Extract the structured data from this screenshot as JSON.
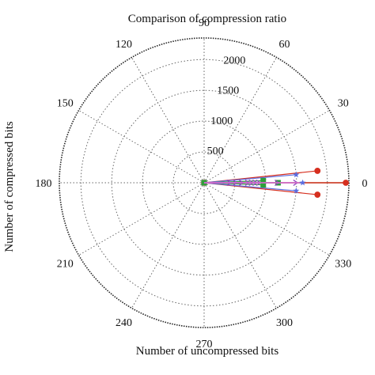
{
  "chart_data": {
    "type": "polar",
    "title": "Comparison of compression ratio",
    "xlabel": "Number of uncompressed bits",
    "ylabel": "Number of compressed bits",
    "angle_ticks": [
      "0",
      "30",
      "60",
      "90",
      "120",
      "150",
      "180",
      "210",
      "240",
      "270",
      "300",
      "330"
    ],
    "angle_values_deg": [
      0,
      30,
      60,
      90,
      120,
      150,
      180,
      210,
      240,
      270,
      300,
      330
    ],
    "r_ticks": [
      "500",
      "1000",
      "1500",
      "2000"
    ],
    "r_values": [
      500,
      1000,
      1500,
      2000
    ],
    "rlim": [
      0,
      2350
    ],
    "grid": true,
    "series": [
      {
        "marker": "line",
        "color": "#a0522d",
        "points": [
          {
            "r": 2300,
            "theta": 0
          }
        ]
      },
      {
        "marker": "circle",
        "color": "#d62f1f",
        "points": [
          {
            "r": 0,
            "theta": 0
          },
          {
            "r": 1850,
            "theta": 6
          },
          {
            "r": 1850,
            "theta": -6
          },
          {
            "r": 2300,
            "theta": 0
          }
        ]
      },
      {
        "marker": "star",
        "color": "#5b6ee1",
        "points": [
          {
            "r": 1500,
            "theta": 5
          },
          {
            "r": 1500,
            "theta": -5
          },
          {
            "r": 1600,
            "theta": 0
          }
        ]
      },
      {
        "marker": "square",
        "color": "#2e9e3a",
        "points": [
          {
            "r": 0,
            "theta": 0
          },
          {
            "r": 960,
            "theta": 2
          },
          {
            "r": 960,
            "theta": -2
          },
          {
            "r": 1200,
            "theta": 0
          }
        ]
      },
      {
        "marker": "arrow",
        "color": "#8b3fbf",
        "points": [
          {
            "r": 420,
            "theta": 0
          },
          {
            "r": 520,
            "theta": 0
          },
          {
            "r": 620,
            "theta": 0
          },
          {
            "r": 720,
            "theta": 0
          },
          {
            "r": 780,
            "theta": 0
          },
          {
            "r": 840,
            "theta": 0
          },
          {
            "r": 900,
            "theta": 0
          },
          {
            "r": 1200,
            "theta": 0
          },
          {
            "r": 1500,
            "theta": 0
          }
        ]
      },
      {
        "marker": "line",
        "color": "#e075d0",
        "points": [
          {
            "r": 1550,
            "theta": 0
          }
        ]
      }
    ]
  }
}
